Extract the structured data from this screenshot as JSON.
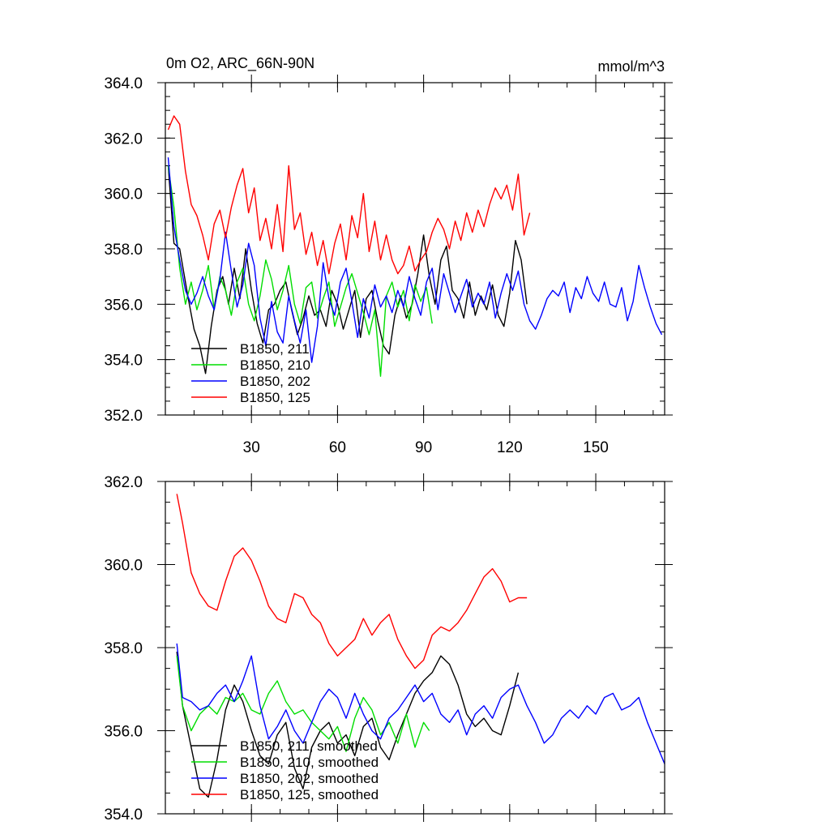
{
  "chart_data": [
    {
      "type": "line",
      "title": "0m O2, ARC_66N-90N",
      "units": "mmol/m^3",
      "xlabel": "",
      "ylabel": "",
      "xlim": [
        0,
        174
      ],
      "ylim": [
        352,
        364
      ],
      "xticks": [
        "30",
        "60",
        "90",
        "120",
        "150"
      ],
      "yticks": [
        "352.0",
        "354.0",
        "356.0",
        "358.0",
        "360.0",
        "362.0",
        "364.0"
      ],
      "legend_position": "bottom-left",
      "colors": [
        "#000000",
        "#00dd00",
        "#0000ff",
        "#ff0000"
      ],
      "series": [
        {
          "name": "B1850, 211",
          "x": [
            1,
            3,
            5,
            8,
            10,
            12,
            14,
            16,
            18,
            20,
            22,
            24,
            26,
            28,
            30,
            32,
            34,
            36,
            38,
            40,
            42,
            44,
            46,
            48,
            50,
            52,
            54,
            56,
            58,
            60,
            62,
            64,
            66,
            68,
            70,
            72,
            74,
            76,
            78,
            80,
            82,
            84,
            86,
            88,
            90,
            92,
            94,
            96,
            98,
            100,
            102,
            104,
            106,
            108,
            110,
            112,
            114,
            116,
            118,
            120,
            122,
            124,
            126
          ],
          "values": [
            361.0,
            358.2,
            358.0,
            356.2,
            355.1,
            354.5,
            353.5,
            355.2,
            356.5,
            357.0,
            356.0,
            357.3,
            356.2,
            358.0,
            356.5,
            355.3,
            354.6,
            355.8,
            356.0,
            356.5,
            356.8,
            355.8,
            354.9,
            355.5,
            356.3,
            355.6,
            355.8,
            355.2,
            356.5,
            356.0,
            355.1,
            355.8,
            356.5,
            354.8,
            356.2,
            356.5,
            355.4,
            354.5,
            354.2,
            355.6,
            356.3,
            355.5,
            356.0,
            357.1,
            358.5,
            357.0,
            356.0,
            357.6,
            358.1,
            356.5,
            356.2,
            355.5,
            356.8,
            355.6,
            356.3,
            355.8,
            356.7,
            355.6,
            355.2,
            356.4,
            358.3,
            357.6,
            356.0
          ]
        },
        {
          "name": "B1850, 210",
          "x": [
            1,
            3,
            5,
            7,
            9,
            11,
            13,
            15,
            17,
            19,
            21,
            23,
            25,
            27,
            29,
            31,
            33,
            35,
            37,
            39,
            41,
            43,
            45,
            47,
            49,
            51,
            53,
            55,
            57,
            59,
            61,
            63,
            65,
            67,
            69,
            71,
            73,
            75,
            77,
            79,
            81,
            83,
            85,
            87,
            89,
            91,
            93
          ],
          "values": [
            361.0,
            359.5,
            357.3,
            356.0,
            356.8,
            355.8,
            356.5,
            357.4,
            355.8,
            357.0,
            356.5,
            355.6,
            356.8,
            357.3,
            356.0,
            355.4,
            356.3,
            357.6,
            356.9,
            355.8,
            356.5,
            357.4,
            356.0,
            355.3,
            356.6,
            356.8,
            355.5,
            356.2,
            356.8,
            355.2,
            355.9,
            356.6,
            357.1,
            356.4,
            355.7,
            354.9,
            355.8,
            353.4,
            356.3,
            356.8,
            355.9,
            356.5,
            355.4,
            356.7,
            356.1,
            356.6,
            355.3
          ]
        },
        {
          "name": "B1850, 202",
          "x": [
            1,
            3,
            5,
            7,
            9,
            11,
            13,
            15,
            17,
            19,
            21,
            23,
            25,
            27,
            29,
            31,
            33,
            35,
            37,
            39,
            41,
            43,
            45,
            47,
            49,
            51,
            53,
            55,
            57,
            59,
            61,
            63,
            65,
            67,
            69,
            71,
            73,
            75,
            77,
            79,
            81,
            83,
            85,
            87,
            89,
            91,
            93,
            95,
            97,
            99,
            101,
            103,
            105,
            107,
            109,
            111,
            113,
            115,
            117,
            119,
            121,
            123,
            125,
            127,
            129,
            131,
            133,
            135,
            137,
            139,
            141,
            143,
            145,
            147,
            149,
            151,
            153,
            155,
            157,
            159,
            161,
            163,
            165,
            167,
            169,
            171,
            173
          ],
          "values": [
            361.3,
            358.8,
            357.6,
            356.5,
            356.0,
            356.4,
            357.0,
            356.3,
            355.8,
            356.9,
            358.6,
            357.2,
            355.9,
            356.7,
            358.2,
            357.4,
            355.5,
            354.5,
            356.1,
            355.0,
            354.6,
            356.3,
            355.4,
            354.6,
            355.8,
            353.9,
            355.2,
            357.5,
            356.2,
            355.6,
            356.8,
            357.3,
            356.1,
            354.8,
            356.2,
            355.5,
            356.7,
            355.9,
            356.3,
            355.7,
            356.5,
            355.9,
            357.0,
            356.2,
            355.6,
            356.8,
            357.3,
            355.8,
            357.1,
            356.4,
            355.7,
            356.3,
            356.9,
            355.9,
            356.4,
            356.0,
            356.8,
            355.5,
            356.4,
            357.1,
            356.5,
            357.2,
            356.0,
            355.4,
            355.1,
            355.6,
            356.2,
            356.5,
            356.3,
            356.8,
            355.7,
            356.6,
            356.2,
            357.0,
            356.4,
            356.1,
            356.8,
            356.0,
            355.9,
            356.6,
            355.4,
            356.1,
            357.4,
            356.6,
            355.9,
            355.3,
            354.9
          ]
        },
        {
          "name": "B1850, 125",
          "x": [
            1,
            3,
            5,
            7,
            9,
            11,
            13,
            15,
            17,
            19,
            21,
            23,
            25,
            27,
            29,
            31,
            33,
            35,
            37,
            39,
            41,
            43,
            45,
            47,
            49,
            51,
            53,
            55,
            57,
            59,
            61,
            63,
            65,
            67,
            69,
            71,
            73,
            75,
            77,
            79,
            81,
            83,
            85,
            87,
            89,
            91,
            93,
            95,
            97,
            99,
            101,
            103,
            105,
            107,
            109,
            111,
            113,
            115,
            117,
            119,
            121,
            123,
            125,
            127
          ],
          "values": [
            362.3,
            362.8,
            362.5,
            360.8,
            359.6,
            359.2,
            358.5,
            357.6,
            358.9,
            359.4,
            358.4,
            359.5,
            360.3,
            360.9,
            359.3,
            360.2,
            358.3,
            359.1,
            358.0,
            359.6,
            357.9,
            361.0,
            358.7,
            359.3,
            357.8,
            358.6,
            357.4,
            358.3,
            357.1,
            358.2,
            358.9,
            357.6,
            359.2,
            358.4,
            360.0,
            357.9,
            359.0,
            357.6,
            358.5,
            357.6,
            357.1,
            357.4,
            358.1,
            357.2,
            357.6,
            357.9,
            358.6,
            359.1,
            358.7,
            358.0,
            359.0,
            358.3,
            359.3,
            358.6,
            359.4,
            358.8,
            359.6,
            360.2,
            359.8,
            360.3,
            359.4,
            360.7,
            358.5,
            359.3
          ]
        }
      ]
    },
    {
      "type": "line",
      "title": "",
      "xlabel": "",
      "ylabel": "",
      "xlim": [
        0,
        174
      ],
      "ylim": [
        354,
        362
      ],
      "xticks": [],
      "yticks": [
        "354.0",
        "356.0",
        "358.0",
        "360.0",
        "362.0"
      ],
      "legend_position": "bottom-left",
      "colors": [
        "#000000",
        "#00dd00",
        "#0000ff",
        "#ff0000"
      ],
      "series": [
        {
          "name": "B1850, 211, smoothed",
          "x": [
            4,
            6,
            9,
            12,
            15,
            18,
            21,
            24,
            27,
            30,
            33,
            36,
            39,
            42,
            45,
            48,
            51,
            54,
            57,
            60,
            63,
            66,
            69,
            72,
            75,
            78,
            81,
            84,
            87,
            90,
            93,
            96,
            99,
            102,
            105,
            108,
            111,
            114,
            117,
            120,
            123
          ],
          "values": [
            357.9,
            356.6,
            355.6,
            354.6,
            354.4,
            355.3,
            356.5,
            357.1,
            356.7,
            356.0,
            355.4,
            355.2,
            355.9,
            356.2,
            355.1,
            354.6,
            355.6,
            356.0,
            356.2,
            355.7,
            355.9,
            355.4,
            356.1,
            356.3,
            355.6,
            355.3,
            355.9,
            356.4,
            356.9,
            357.2,
            357.4,
            357.8,
            357.6,
            357.1,
            356.4,
            356.1,
            356.3,
            356.0,
            355.9,
            356.6,
            357.4
          ]
        },
        {
          "name": "B1850, 210, smoothed",
          "x": [
            4,
            6,
            9,
            12,
            15,
            18,
            21,
            24,
            27,
            30,
            33,
            36,
            39,
            42,
            45,
            48,
            51,
            54,
            57,
            60,
            63,
            66,
            69,
            72,
            75,
            78,
            81,
            84,
            87,
            90,
            92
          ],
          "values": [
            357.8,
            356.6,
            356.0,
            356.4,
            356.6,
            356.4,
            356.8,
            356.7,
            356.9,
            356.5,
            356.4,
            356.9,
            357.2,
            356.7,
            356.4,
            356.5,
            356.2,
            356.0,
            355.8,
            356.1,
            355.5,
            356.3,
            356.8,
            356.5,
            355.9,
            356.2,
            355.7,
            356.4,
            355.6,
            356.2,
            356.0
          ]
        },
        {
          "name": "B1850, 202, smoothed",
          "x": [
            4,
            6,
            9,
            12,
            15,
            18,
            21,
            24,
            27,
            30,
            33,
            36,
            39,
            42,
            45,
            48,
            51,
            54,
            57,
            60,
            63,
            66,
            69,
            72,
            75,
            78,
            81,
            84,
            87,
            90,
            93,
            96,
            99,
            102,
            105,
            108,
            111,
            114,
            117,
            120,
            123,
            126,
            129,
            132,
            135,
            138,
            141,
            144,
            147,
            150,
            153,
            156,
            159,
            162,
            165,
            168,
            171,
            174
          ],
          "values": [
            358.1,
            356.8,
            356.7,
            356.5,
            356.6,
            356.9,
            357.1,
            356.7,
            357.2,
            357.8,
            356.6,
            355.8,
            356.1,
            356.5,
            356.0,
            355.7,
            356.2,
            356.7,
            357.0,
            356.8,
            356.3,
            356.9,
            356.4,
            356.0,
            355.8,
            356.3,
            356.5,
            356.8,
            357.1,
            356.7,
            356.9,
            356.4,
            356.2,
            356.5,
            355.9,
            356.4,
            356.6,
            356.3,
            356.8,
            357.0,
            357.1,
            356.6,
            356.2,
            355.7,
            355.9,
            356.3,
            356.5,
            356.3,
            356.6,
            356.4,
            356.8,
            356.9,
            356.5,
            356.6,
            356.8,
            356.2,
            355.7,
            355.2
          ]
        },
        {
          "name": "B1850, 125, smoothed",
          "x": [
            4,
            6,
            9,
            12,
            15,
            18,
            21,
            24,
            27,
            30,
            33,
            36,
            39,
            42,
            45,
            48,
            51,
            54,
            57,
            60,
            63,
            66,
            69,
            72,
            75,
            78,
            81,
            84,
            87,
            90,
            93,
            96,
            99,
            102,
            105,
            108,
            111,
            114,
            117,
            120,
            123,
            126
          ],
          "values": [
            361.7,
            361.0,
            359.8,
            359.3,
            359.0,
            358.9,
            359.6,
            360.2,
            360.4,
            360.1,
            359.6,
            359.0,
            358.7,
            358.6,
            359.3,
            359.2,
            358.8,
            358.6,
            358.1,
            357.8,
            358.0,
            358.2,
            358.7,
            358.3,
            358.6,
            358.8,
            358.2,
            357.8,
            357.5,
            357.7,
            358.3,
            358.5,
            358.4,
            358.6,
            358.9,
            359.3,
            359.7,
            359.9,
            359.6,
            359.1,
            359.2,
            359.2
          ]
        }
      ]
    }
  ]
}
